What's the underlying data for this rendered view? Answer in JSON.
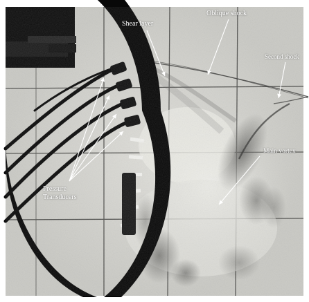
{
  "image": {
    "kind": "schlieren photograph of supersonic flow over a cavity with pressure transducers",
    "background_color": "#c9c9c4",
    "ring_color": "#080808",
    "label_color": "#ffffff"
  },
  "annotations": {
    "shear_layer": "Shear layer",
    "oblique_shock": "Oblique shock",
    "second_shock": "Second shock",
    "main_vortex": "Main vortex",
    "pressure_line1": "Pressure",
    "pressure_line2": "Transducers"
  },
  "icons": {
    "arrows": "thin-white-arrow-icon"
  }
}
